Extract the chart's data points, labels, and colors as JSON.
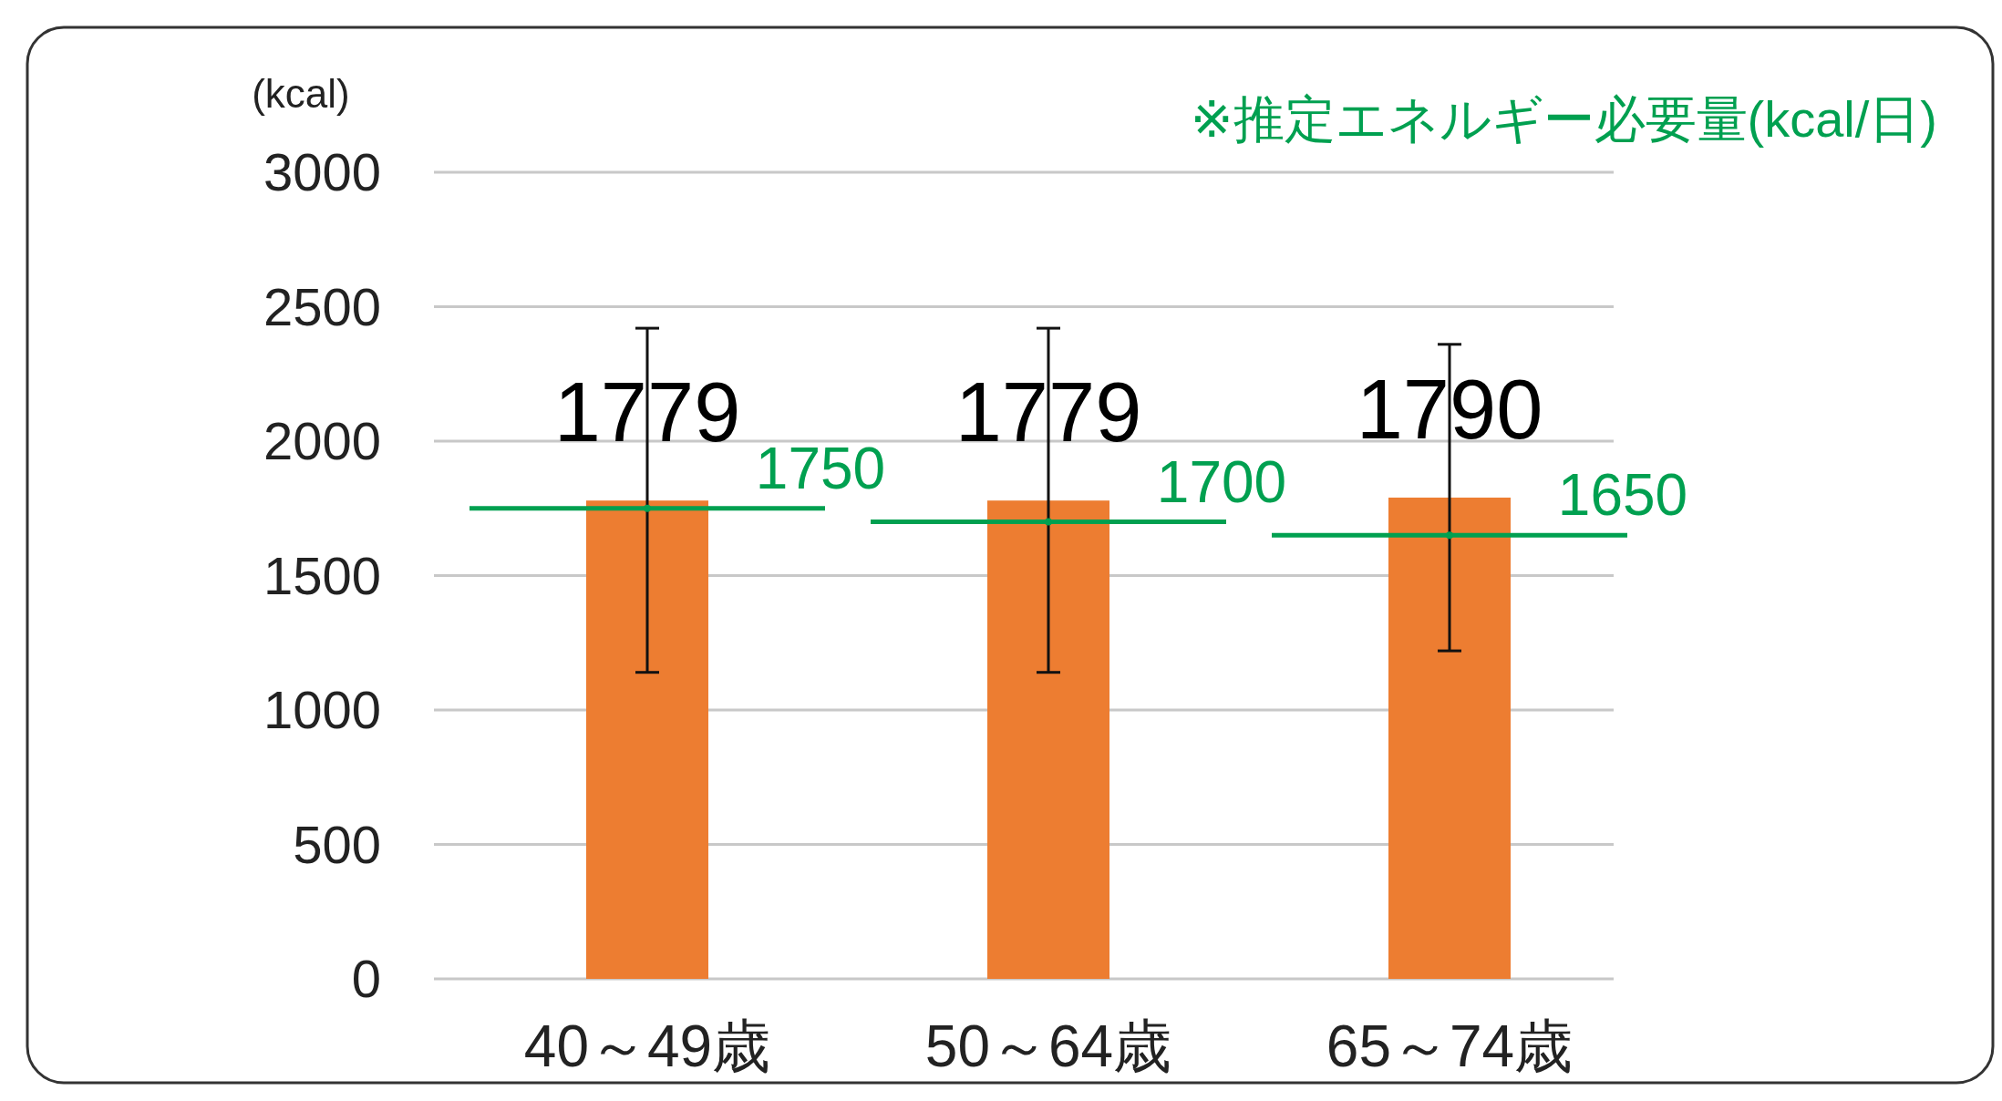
{
  "chart_data": {
    "type": "bar",
    "ylabel": "(kcal)",
    "categories": [
      "40～49歳",
      "50～64歳",
      "65～74歳"
    ],
    "series": [
      {
        "color": "#ed7d31",
        "values": [
          1779,
          1779,
          1790
        ],
        "errors": [
          [
            1140,
            2420
          ],
          [
            1140,
            2420
          ],
          [
            1220,
            2360
          ]
        ],
        "data_labels": true
      },
      {
        "type": "scatter",
        "name": "※推定エネルギー必要量(kcal/日)",
        "color": "#00a050",
        "values": [
          1750,
          1700,
          1650
        ],
        "data_labels": true
      }
    ],
    "ylim": [
      0,
      3000
    ],
    "yticks": [
      0,
      500,
      1000,
      1500,
      2000,
      2500,
      3000
    ],
    "grid": "y"
  }
}
